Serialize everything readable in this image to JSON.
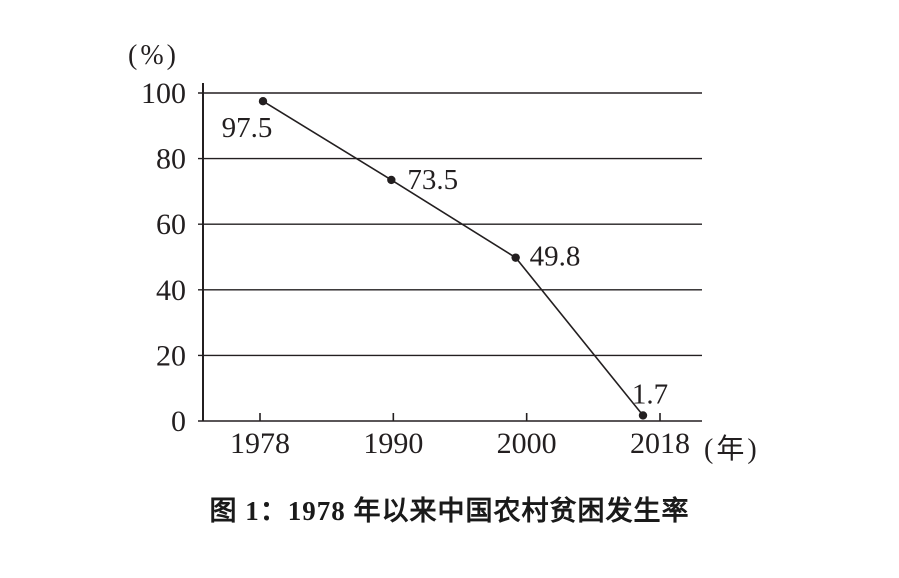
{
  "figure": {
    "caption": "图 1：1978 年以来中国农村贫困发生率",
    "y_unit_label": "(%)",
    "x_unit_label": "(年)"
  },
  "chart_data": {
    "type": "line",
    "title": "图 1：1978 年以来中国农村贫困发生率",
    "categories": [
      "1978",
      "1990",
      "2000",
      "2018"
    ],
    "values": [
      97.5,
      73.5,
      49.8,
      1.7
    ],
    "data_labels": [
      "97.5",
      "73.5",
      "49.8",
      "1.7"
    ],
    "xlabel": "(年)",
    "ylabel": "(%)",
    "ylim": [
      0,
      100
    ],
    "yticks": [
      0,
      20,
      40,
      60,
      80,
      100
    ],
    "grid": true,
    "legend": "none",
    "line_color": "#231f20",
    "marker": "filled-dot",
    "background_color": "#ffffff"
  }
}
